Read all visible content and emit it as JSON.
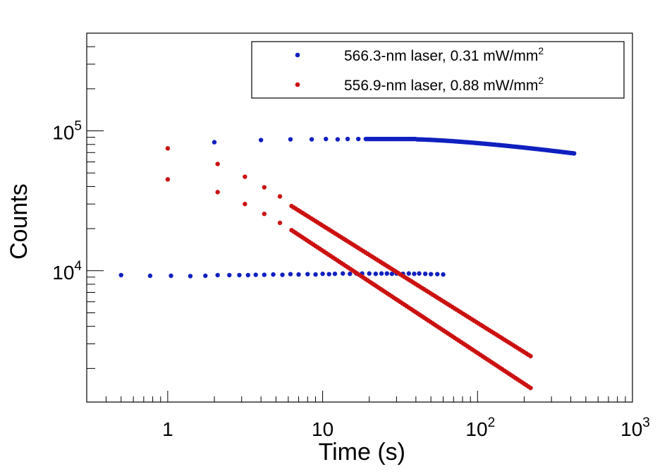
{
  "chart_data": {
    "type": "scatter",
    "xlabel": "Time (s)",
    "ylabel": "Counts",
    "xscale": "log",
    "yscale": "log",
    "xlim": [
      0.3,
      1000
    ],
    "ylim": [
      1150,
      500000
    ],
    "x_ticks": [
      {
        "value": 1,
        "base": "1",
        "exp": ""
      },
      {
        "value": 10,
        "base": "10",
        "exp": ""
      },
      {
        "value": 100,
        "base": "10",
        "exp": "2"
      },
      {
        "value": 1000,
        "base": "10",
        "exp": "3"
      }
    ],
    "y_ticks": [
      {
        "value": 10000,
        "base": "10",
        "exp": "4"
      },
      {
        "value": 100000,
        "base": "10",
        "exp": "5"
      }
    ],
    "grid": false,
    "legend_position": "top-right",
    "series": [
      {
        "name": "566.3-nm laser, 0.31 mW/mm",
        "name_sup": "2",
        "color": "#1020c0",
        "segments": [
          {
            "points": [
              [
                0.5,
                9300
              ],
              [
                0.77,
                9200
              ],
              [
                1.05,
                9200
              ],
              [
                1.4,
                9150
              ],
              [
                1.75,
                9200
              ],
              [
                2.1,
                9300
              ],
              [
                2.5,
                9300
              ],
              [
                2.9,
                9300
              ],
              [
                3.3,
                9300
              ],
              [
                3.7,
                9350
              ],
              [
                4.2,
                9350
              ],
              [
                4.8,
                9400
              ],
              [
                5.5,
                9350
              ],
              [
                6.2,
                9450
              ],
              [
                7,
                9400
              ],
              [
                8,
                9450
              ],
              [
                9,
                9400
              ],
              [
                10,
                9500
              ],
              [
                11,
                9450
              ],
              [
                12,
                9500
              ],
              [
                13.5,
                9550
              ],
              [
                15,
                9500
              ],
              [
                16.5,
                9550
              ],
              [
                18,
                9550
              ],
              [
                20,
                9550
              ],
              [
                22,
                9500
              ],
              [
                24,
                9550
              ],
              [
                26,
                9550
              ],
              [
                28,
                9500
              ],
              [
                30,
                9550
              ],
              [
                33,
                9500
              ],
              [
                36,
                9550
              ],
              [
                39,
                9500
              ],
              [
                42,
                9550
              ],
              [
                46,
                9500
              ],
              [
                50,
                9450
              ],
              [
                55,
                9450
              ],
              [
                60,
                9400
              ]
            ]
          },
          {
            "start": 2,
            "end": 420,
            "y0": 83000,
            "y_peak": 87000,
            "x_peak": 40,
            "y_end": 69000,
            "n": 130
          }
        ]
      },
      {
        "name": "556.9-nm laser, 0.88 mW/mm",
        "name_sup": "2",
        "color": "#cc1111",
        "segments": [
          {
            "points": [
              [
                1,
                75000
              ],
              [
                2.1,
                58000
              ],
              [
                3.15,
                47000
              ],
              [
                4.2,
                39500
              ],
              [
                5.3,
                34000
              ]
            ],
            "power_start": 6.3,
            "power_end": 220,
            "power_y_start": 29000,
            "power_y_end": 2450,
            "n": 110
          },
          {
            "points": [
              [
                1,
                45000
              ],
              [
                2.1,
                36500
              ],
              [
                3.15,
                30000
              ],
              [
                4.2,
                25500
              ],
              [
                5.3,
                22000
              ]
            ],
            "power_start": 6.3,
            "power_end": 220,
            "power_y_start": 19500,
            "power_y_end": 1450,
            "n": 110
          }
        ]
      }
    ]
  }
}
